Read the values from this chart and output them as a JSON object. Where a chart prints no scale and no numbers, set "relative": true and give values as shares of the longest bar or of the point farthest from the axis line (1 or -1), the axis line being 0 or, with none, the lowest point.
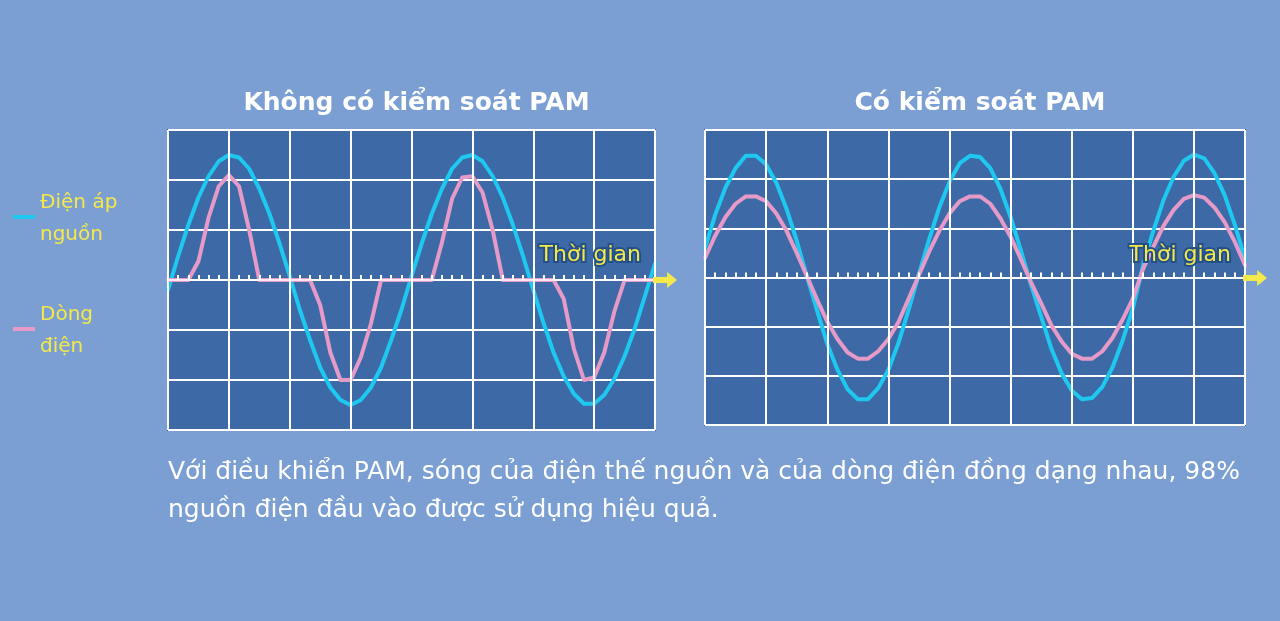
{
  "chart_data": [
    {
      "type": "line",
      "title": "Không có kiểm soát PAM",
      "relative": true,
      "grid": true,
      "legend": "left",
      "marker": "none",
      "line_style": "solid",
      "categories": [
        null,
        null,
        null,
        null,
        null,
        null,
        null,
        null,
        null,
        null,
        null,
        null,
        null,
        null,
        null,
        null,
        null,
        null,
        null,
        null,
        null,
        null,
        null,
        null,
        null,
        null,
        null,
        null,
        null,
        null,
        null,
        null,
        null,
        null,
        null,
        null,
        null,
        null,
        null,
        null,
        null,
        null,
        null,
        null,
        null,
        null,
        null,
        null,
        null
      ],
      "annotations": [
        "Thời gian",
        "Với điều khiển PAM, sóng của điện thế nguồn và của dòng điện đồng dạng nhau, 98% nguồn điện đầu vào được sử dụng hiệu quả."
      ],
      "series": [
        {
          "name": "Điện áp nguồn",
          "color": "#1ec8f0",
          "values": [
            -0.08,
            0.19,
            0.44,
            0.66,
            0.83,
            0.95,
            1.0,
            0.98,
            0.89,
            0.73,
            0.53,
            0.29,
            0.03,
            -0.24,
            -0.48,
            -0.7,
            -0.86,
            -0.96,
            -1.0,
            -0.96,
            -0.86,
            -0.7,
            -0.48,
            -0.24,
            0.03,
            0.29,
            0.53,
            0.73,
            0.89,
            0.98,
            1.0,
            0.95,
            0.83,
            0.66,
            0.44,
            0.19,
            -0.08,
            -0.34,
            -0.58,
            -0.77,
            -0.91,
            -0.99,
            -0.99,
            -0.92,
            -0.79,
            -0.61,
            -0.39,
            -0.13,
            0.13
          ]
        },
        {
          "name": "Dòng điện",
          "color": "#e59ac8",
          "values": [
            0,
            0,
            0,
            0.15,
            0.5,
            0.75,
            0.84,
            0.75,
            0.4,
            0,
            0,
            0,
            0,
            0,
            0,
            -0.2,
            -0.58,
            -0.8,
            -0.8,
            -0.62,
            -0.35,
            0,
            0,
            0,
            0,
            0,
            0,
            0.3,
            0.65,
            0.82,
            0.83,
            0.7,
            0.4,
            0,
            0,
            0,
            0,
            0,
            0,
            -0.15,
            -0.55,
            -0.8,
            -0.78,
            -0.58,
            -0.25,
            0,
            0,
            0,
            0
          ]
        }
      ]
    },
    {
      "type": "line",
      "title": "Có kiểm soát PAM",
      "relative": true,
      "grid": true,
      "marker": "none",
      "line_style": "solid",
      "categories": [
        null,
        null,
        null,
        null,
        null,
        null,
        null,
        null,
        null,
        null,
        null,
        null,
        null,
        null,
        null,
        null,
        null,
        null,
        null,
        null,
        null,
        null,
        null,
        null,
        null,
        null,
        null,
        null,
        null,
        null,
        null,
        null,
        null,
        null,
        null,
        null,
        null,
        null,
        null,
        null,
        null,
        null,
        null,
        null,
        null,
        null,
        null,
        null,
        null,
        null,
        null,
        null,
        null,
        null
      ],
      "annotations": [
        "Thời gian"
      ],
      "series": [
        {
          "color": "#1ec8f0",
          "values": [
            0.24,
            0.51,
            0.73,
            0.89,
            0.99,
            0.99,
            0.92,
            0.77,
            0.56,
            0.3,
            0.01,
            -0.27,
            -0.54,
            -0.75,
            -0.91,
            -0.99,
            -0.99,
            -0.9,
            -0.75,
            -0.53,
            -0.26,
            0.03,
            0.31,
            0.57,
            0.78,
            0.93,
            0.99,
            0.98,
            0.89,
            0.72,
            0.49,
            0.22,
            -0.06,
            -0.32,
            -0.58,
            -0.78,
            -0.92,
            -0.99,
            -0.98,
            -0.89,
            -0.73,
            -0.51,
            -0.25,
            0.1,
            0.38,
            0.63,
            0.82,
            0.95,
            1.0,
            0.97,
            0.85,
            0.67,
            0.43,
            0.15
          ]
        },
        {
          "color": "#e59ac8",
          "values": [
            0.16,
            0.34,
            0.49,
            0.6,
            0.66,
            0.66,
            0.62,
            0.52,
            0.38,
            0.2,
            0.01,
            -0.18,
            -0.36,
            -0.5,
            -0.61,
            -0.66,
            -0.66,
            -0.6,
            -0.5,
            -0.36,
            -0.17,
            0.02,
            0.21,
            0.38,
            0.52,
            0.62,
            0.66,
            0.66,
            0.6,
            0.48,
            0.33,
            0.15,
            -0.04,
            -0.21,
            -0.39,
            -0.52,
            -0.62,
            -0.66,
            -0.66,
            -0.6,
            -0.49,
            -0.34,
            -0.17,
            0.07,
            0.25,
            0.42,
            0.55,
            0.64,
            0.67,
            0.65,
            0.57,
            0.45,
            0.29,
            0.1
          ]
        }
      ]
    }
  ]
}
